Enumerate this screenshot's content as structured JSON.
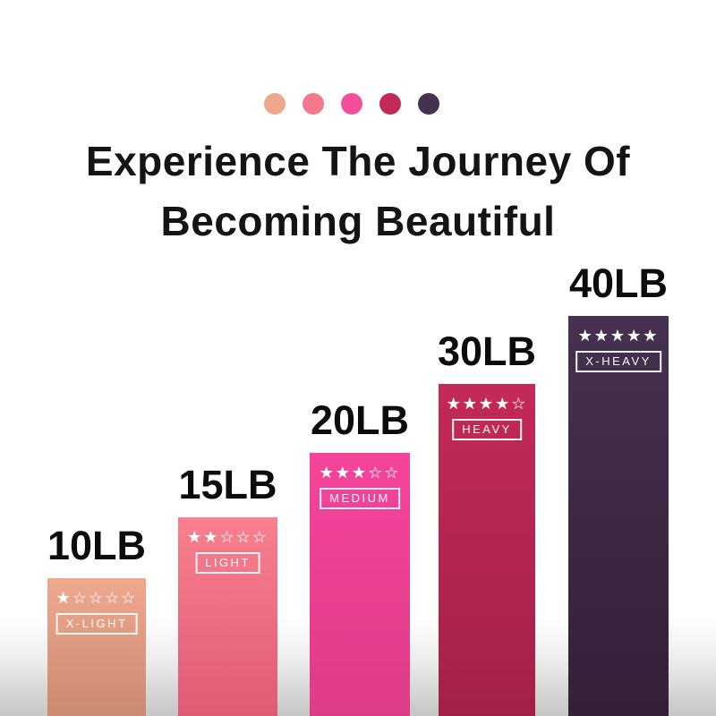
{
  "header": {
    "line1": "Experience The Journey Of",
    "line2": "Becoming Beautiful"
  },
  "palette_dots": [
    "#EDA88D",
    "#F5798C",
    "#F54E9B",
    "#C22B58",
    "#453150"
  ],
  "chart_data": {
    "type": "bar",
    "title": "Experience The Journey Of Becoming Beautiful",
    "orientation": "vertical",
    "grid": false,
    "legend_position": "none",
    "categories": [
      "X-LIGHT",
      "LIGHT",
      "MEDIUM",
      "HEAVY",
      "X-HEAVY"
    ],
    "values_lb": [
      10,
      15,
      20,
      30,
      40
    ],
    "value_labels": [
      "10LB",
      "15LB",
      "20LB",
      "30LB",
      "40LB"
    ],
    "star_ratings": [
      1,
      2,
      3,
      4,
      5
    ],
    "stars_max": 5,
    "stars_display": [
      "★☆☆☆☆",
      "★★☆☆☆",
      "★★★☆☆",
      "★★★★☆",
      "★★★★★"
    ],
    "bar_gradient_top": [
      "#EFA98E",
      "#F8808F",
      "#F5449B",
      "#C32A58",
      "#463150"
    ],
    "bar_gradient_bottom": [
      "#CB8970",
      "#DF5B74",
      "#DF3C88",
      "#A32147",
      "#342039"
    ],
    "text_color_on_bars": "#FFFFFF",
    "value_label_color": "#0C0C0C"
  }
}
